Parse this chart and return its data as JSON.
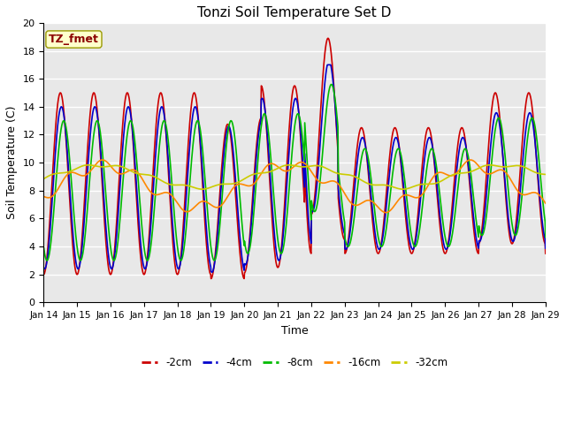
{
  "title": "Tonzi Soil Temperature Set D",
  "xlabel": "Time",
  "ylabel": "Soil Temperature (C)",
  "annotation": "TZ_fmet",
  "annotation_color": "#8B0000",
  "annotation_bg": "#FFFFCC",
  "ylim": [
    0,
    20
  ],
  "yticks": [
    0,
    2,
    4,
    6,
    8,
    10,
    12,
    14,
    16,
    18,
    20
  ],
  "xtick_labels": [
    "Jan 14",
    "Jan 15",
    "Jan 16",
    "Jan 17",
    "Jan 18",
    "Jan 19",
    "Jan 20",
    "Jan 21",
    "Jan 22",
    "Jan 23",
    "Jan 24",
    "Jan 25",
    "Jan 26",
    "Jan 27",
    "Jan 28",
    "Jan 29"
  ],
  "series": [
    {
      "label": "-2cm",
      "color": "#CC0000",
      "lw": 1.2
    },
    {
      "label": "-4cm",
      "color": "#0000CC",
      "lw": 1.2
    },
    {
      "label": "-8cm",
      "color": "#00BB00",
      "lw": 1.2
    },
    {
      "label": "-16cm",
      "color": "#FF8800",
      "lw": 1.2
    },
    {
      "label": "-32cm",
      "color": "#CCCC00",
      "lw": 1.2
    }
  ],
  "bg_color": "#E8E8E8",
  "grid_color": "#FFFFFF"
}
